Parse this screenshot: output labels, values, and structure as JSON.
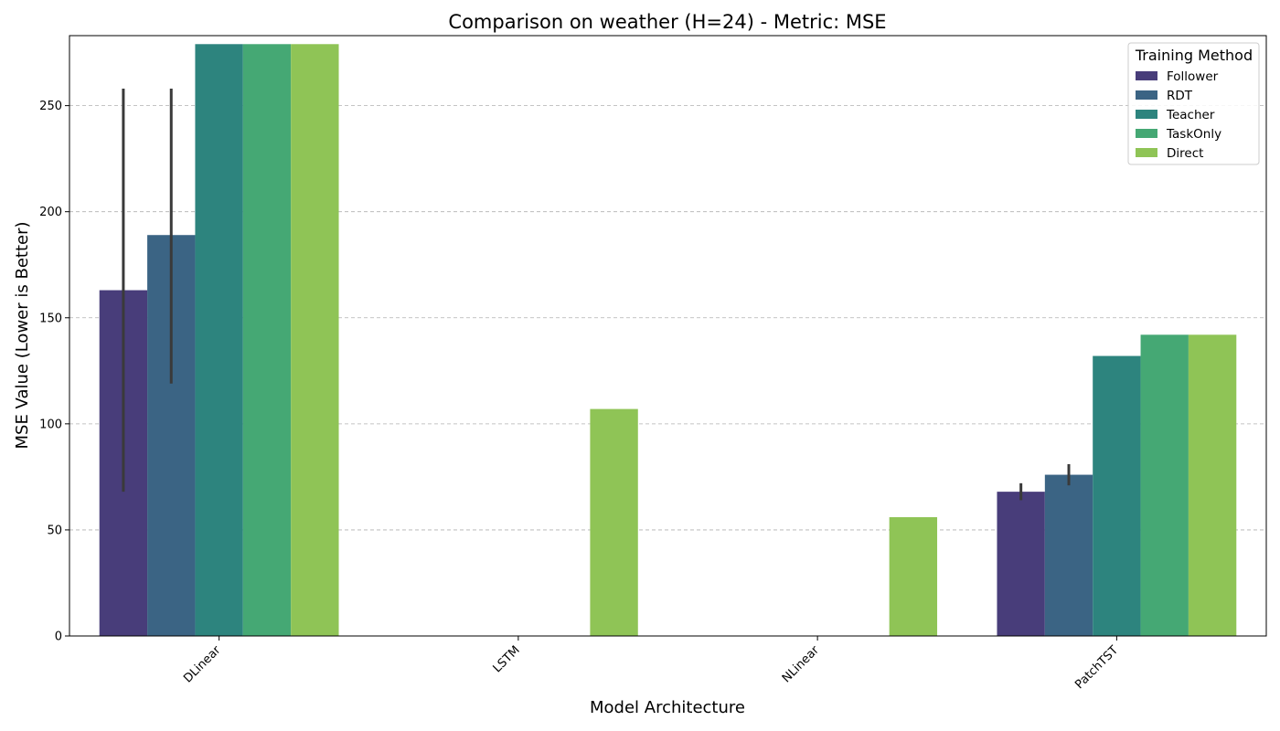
{
  "chart_data": {
    "type": "bar",
    "title": "Comparison on weather (H=24) - Metric: MSE",
    "xlabel": "Model Architecture",
    "ylabel": "MSE Value (Lower is Better)",
    "categories": [
      "DLinear",
      "LSTM",
      "NLinear",
      "PatchTST"
    ],
    "ylim": [
      0,
      283
    ],
    "yticks": [
      0,
      50,
      100,
      150,
      200,
      250
    ],
    "grid": "horizontal dashed",
    "legend": {
      "title": "Training Method",
      "position": "top-right"
    },
    "series": [
      {
        "name": "Follower",
        "color": "#483d7a",
        "values": [
          163,
          null,
          null,
          68
        ],
        "error_low": [
          68,
          null,
          null,
          64
        ],
        "error_high": [
          258,
          null,
          null,
          72
        ]
      },
      {
        "name": "RDT",
        "color": "#3b6484",
        "values": [
          189,
          null,
          null,
          76
        ],
        "error_low": [
          119,
          null,
          null,
          71
        ],
        "error_high": [
          258,
          null,
          null,
          81
        ]
      },
      {
        "name": "Teacher",
        "color": "#2d847e",
        "values": [
          279,
          null,
          null,
          132
        ],
        "error_low": null,
        "error_high": null
      },
      {
        "name": "TaskOnly",
        "color": "#45a874",
        "values": [
          279,
          null,
          null,
          142
        ],
        "error_low": null,
        "error_high": null
      },
      {
        "name": "Direct",
        "color": "#8fc456",
        "values": [
          279,
          107,
          56,
          142
        ],
        "error_low": null,
        "error_high": null
      }
    ]
  }
}
